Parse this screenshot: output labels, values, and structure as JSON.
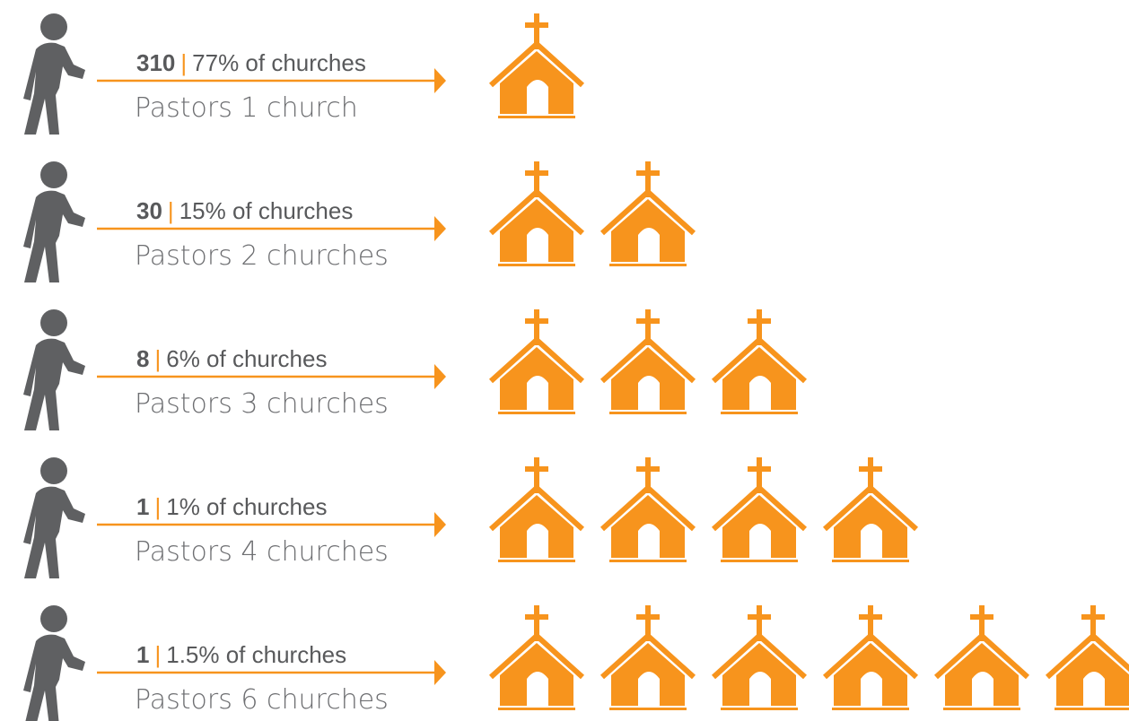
{
  "separator": "|",
  "rows": [
    {
      "count": "310",
      "share": "77% of churches",
      "label": "Pastors 1 church",
      "churches": 1
    },
    {
      "count": "30",
      "share": "15% of churches",
      "label": "Pastors 2 churches",
      "churches": 2
    },
    {
      "count": "8",
      "share": "6% of churches",
      "label": "Pastors 3 churches",
      "churches": 3
    },
    {
      "count": "1",
      "share": "1% of churches",
      "label": "Pastors 4 churches",
      "churches": 4
    },
    {
      "count": "1",
      "share": "1.5% of churches",
      "label": "Pastors 6 churches",
      "churches": 6
    }
  ]
}
